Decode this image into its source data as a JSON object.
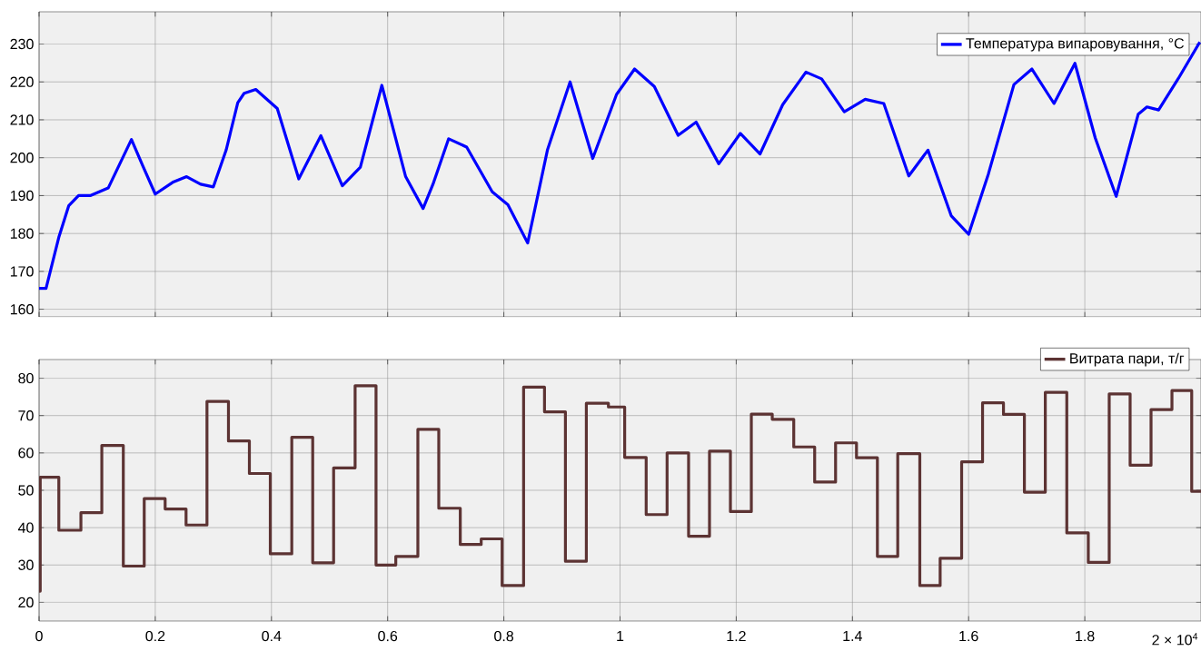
{
  "chart_data": [
    {
      "type": "line",
      "x": [
        0,
        0.012,
        0.034,
        0.051,
        0.068,
        0.088,
        0.119,
        0.159,
        0.179,
        0.2,
        0.23,
        0.254,
        0.278,
        0.3,
        0.322,
        0.342,
        0.353,
        0.373,
        0.41,
        0.447,
        0.485,
        0.522,
        0.553,
        0.59,
        0.631,
        0.661,
        0.678,
        0.705,
        0.736,
        0.78,
        0.807,
        0.841,
        0.875,
        0.914,
        0.953,
        0.994,
        1.025,
        1.059,
        1.1,
        1.131,
        1.17,
        1.207,
        1.241,
        1.28,
        1.32,
        1.347,
        1.386,
        1.422,
        1.454,
        1.497,
        1.53,
        1.57,
        1.6,
        1.634,
        1.678,
        1.709,
        1.747,
        1.783,
        1.818,
        1.854,
        1.892,
        1.907,
        1.927,
        1.961,
        1.998
      ],
      "series": [
        {
          "name": "Температура випаровування, °C",
          "color": "#0000ff",
          "values": [
            165.5,
            165.5,
            179,
            187.3,
            190,
            190,
            192,
            204.8,
            197.7,
            190.4,
            193.5,
            195,
            193,
            192.3,
            202,
            214.5,
            217,
            218,
            213,
            194.4,
            205.8,
            192.6,
            197.5,
            219.1,
            195,
            186.6,
            193,
            205,
            202.8,
            191,
            187.6,
            177.5,
            202,
            220,
            199.8,
            216.7,
            223.4,
            218.8,
            205.9,
            209.4,
            198.4,
            206.4,
            201,
            214,
            222.6,
            220.8,
            212.1,
            215.4,
            214.3,
            195.2,
            202,
            184.7,
            179.8,
            195.7,
            219.3,
            223.4,
            214.3,
            224.9,
            205.2,
            189.8,
            211.5,
            213.4,
            212.6,
            220.9,
            230.5
          ]
        }
      ],
      "xlim": [
        0,
        2
      ],
      "ylim": [
        158,
        238.5
      ],
      "xticks": [
        0,
        0.2,
        0.4,
        0.6,
        0.8,
        1,
        1.2,
        1.4,
        1.6,
        1.8
      ],
      "yticks": [
        160,
        170,
        180,
        190,
        200,
        210,
        220,
        230
      ],
      "grid": true,
      "legend": "top right",
      "tick_labels": "y"
    },
    {
      "type": "step",
      "x": [
        0,
        0.002,
        0.034,
        0.072,
        0.108,
        0.145,
        0.181,
        0.217,
        0.253,
        0.289,
        0.326,
        0.362,
        0.398,
        0.435,
        0.471,
        0.507,
        0.544,
        0.58,
        0.614,
        0.652,
        0.688,
        0.725,
        0.761,
        0.797,
        0.834,
        0.87,
        0.906,
        0.942,
        0.98,
        1.008,
        1.045,
        1.081,
        1.118,
        1.154,
        1.19,
        1.226,
        1.262,
        1.299,
        1.335,
        1.371,
        1.407,
        1.443,
        1.478,
        1.516,
        1.551,
        1.588,
        1.624,
        1.66,
        1.696,
        1.732,
        1.769,
        1.806,
        1.842,
        1.878,
        1.914,
        1.95,
        1.984,
        2.0
      ],
      "series": [
        {
          "name": "Витрата пари, т/г",
          "color": "#5c3333",
          "values": [
            23,
            53.5,
            39.3,
            44,
            62,
            29.7,
            47.8,
            45,
            40.7,
            73.8,
            63.2,
            54.5,
            33,
            64.2,
            30.6,
            56,
            78,
            30,
            32.3,
            66.3,
            45.2,
            35.5,
            37,
            24.5,
            77.6,
            71,
            31,
            73.3,
            72.3,
            58.8,
            43.5,
            60,
            37.7,
            60.5,
            44.3,
            70.4,
            69,
            61.6,
            52.2,
            62.7,
            58.7,
            32.3,
            59.8,
            24.5,
            31.8,
            57.6,
            73.4,
            70.3,
            49.5,
            76.2,
            38.6,
            30.7,
            75.8,
            56.7,
            71.6,
            76.7,
            49.7,
            49.7
          ]
        }
      ],
      "xlim": [
        0,
        2
      ],
      "ylim": [
        15,
        85
      ],
      "xticks": [
        0,
        0.2,
        0.4,
        0.6,
        0.8,
        1,
        1.2,
        1.4,
        1.6,
        1.8
      ],
      "yticks": [
        20,
        30,
        40,
        50,
        60,
        70,
        80
      ],
      "grid": true,
      "legend": "top right",
      "annotations": [
        "2 × 10$^{4}$"
      ]
    }
  ]
}
